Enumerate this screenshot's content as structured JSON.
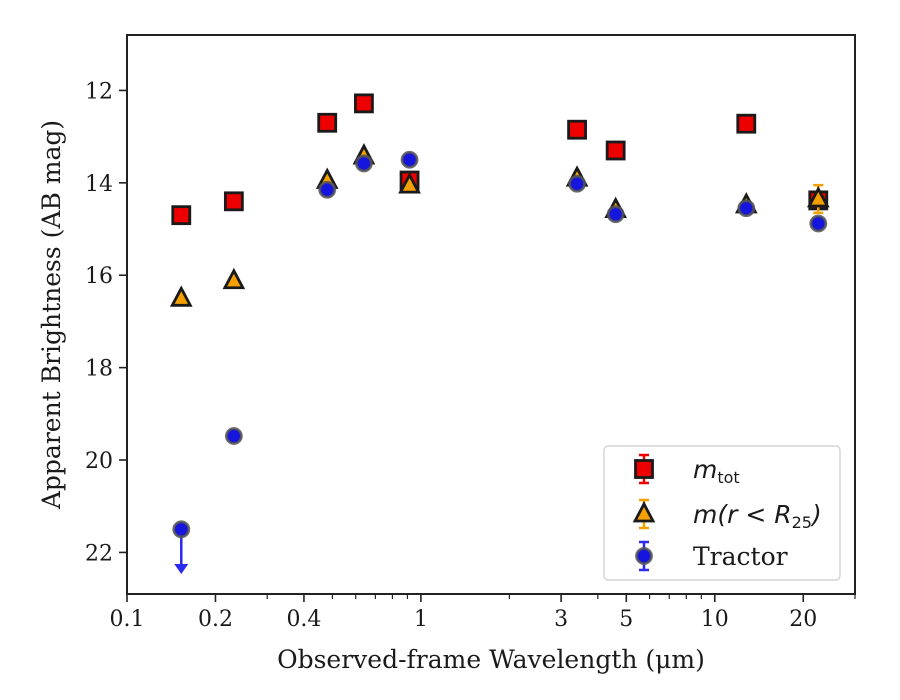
{
  "chart_data": {
    "type": "scatter",
    "xlabel": "Observed-frame Wavelength (μm)",
    "ylabel": "Apparent Brightness (AB mag)",
    "x_scale": "log",
    "y_inverted": true,
    "xlim": [
      0.1,
      30
    ],
    "ylim": [
      22.9,
      10.8
    ],
    "x_tick_values": [
      0.1,
      0.2,
      0.4,
      1,
      3,
      5,
      10,
      20
    ],
    "x_tick_labels": [
      "0.1",
      "0.2",
      "0.4",
      "1",
      "3",
      "5",
      "10",
      "20"
    ],
    "y_ticks": [
      12,
      14,
      16,
      18,
      20,
      22
    ],
    "legend_position": "bottom-right",
    "series": [
      {
        "name": "m_tot",
        "legend_main": "m",
        "legend_sub": "tot",
        "marker": "square",
        "fill": "#ee0000",
        "edge": "#1a1a1a",
        "errcolor": "#ee0000",
        "points": [
          {
            "x": 0.153,
            "y": 14.7
          },
          {
            "x": 0.231,
            "y": 14.4
          },
          {
            "x": 0.48,
            "y": 12.7
          },
          {
            "x": 0.64,
            "y": 12.28
          },
          {
            "x": 0.915,
            "y": 13.95
          },
          {
            "x": 3.4,
            "y": 12.85
          },
          {
            "x": 4.6,
            "y": 13.3
          },
          {
            "x": 12.8,
            "y": 12.72
          },
          {
            "x": 22.5,
            "y": 14.38
          }
        ]
      },
      {
        "name": "m(r < R_25)",
        "legend_main": "m(r < R",
        "legend_sub": "25",
        "legend_close": ")",
        "marker": "triangle",
        "fill": "#f4a000",
        "edge": "#1a1a1a",
        "errcolor": "#f4a000",
        "points": [
          {
            "x": 0.153,
            "y": 16.5
          },
          {
            "x": 0.231,
            "y": 16.12
          },
          {
            "x": 0.48,
            "y": 13.95
          },
          {
            "x": 0.64,
            "y": 13.42
          },
          {
            "x": 0.915,
            "y": 14.05
          },
          {
            "x": 3.4,
            "y": 13.9
          },
          {
            "x": 4.6,
            "y": 14.58
          },
          {
            "x": 12.8,
            "y": 14.48
          },
          {
            "x": 22.5,
            "y": 14.35,
            "yerr": 0.3
          }
        ]
      },
      {
        "name": "Tractor",
        "legend_main": "Tractor",
        "marker": "circle",
        "fill": "#1515dd",
        "edge": "#555555",
        "errcolor": "#2a2af0",
        "points": [
          {
            "x": 0.153,
            "y": 21.5,
            "upper_limit": true
          },
          {
            "x": 0.231,
            "y": 19.48
          },
          {
            "x": 0.48,
            "y": 14.15
          },
          {
            "x": 0.64,
            "y": 13.58
          },
          {
            "x": 0.915,
            "y": 13.5
          },
          {
            "x": 3.4,
            "y": 14.02
          },
          {
            "x": 4.6,
            "y": 14.68
          },
          {
            "x": 12.8,
            "y": 14.55
          },
          {
            "x": 22.5,
            "y": 14.88
          }
        ]
      }
    ]
  }
}
